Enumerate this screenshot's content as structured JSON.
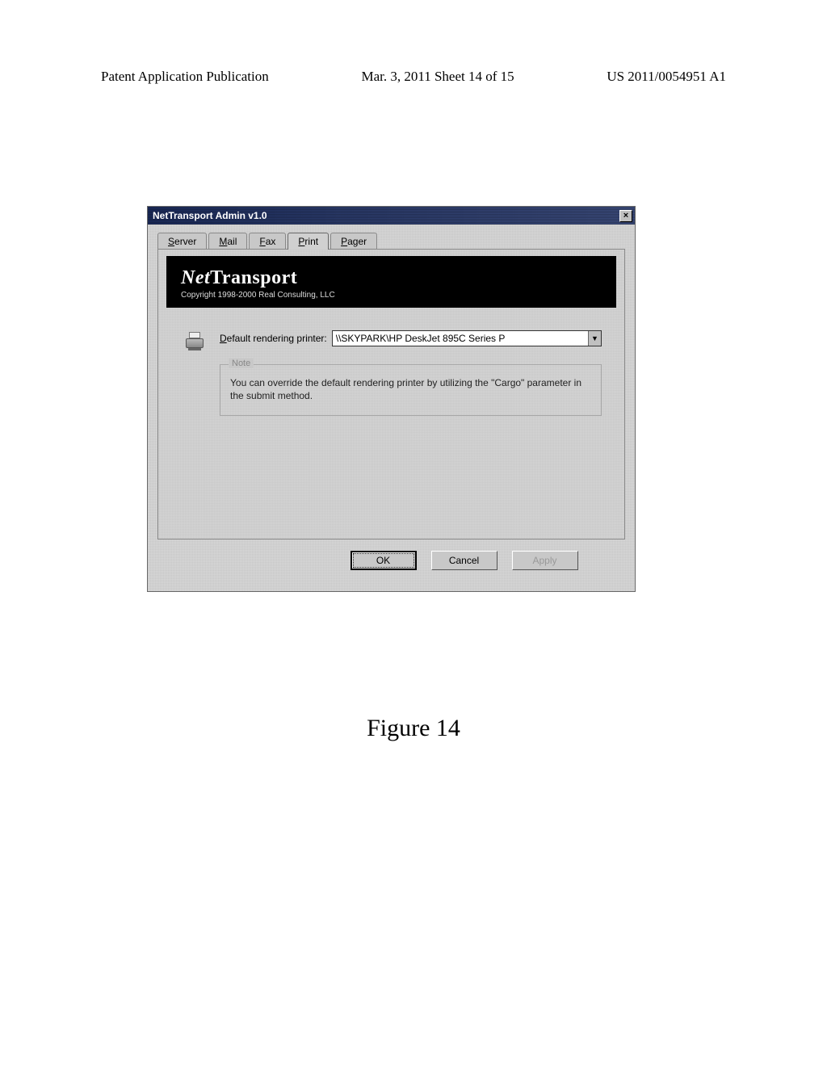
{
  "page_header": {
    "left": "Patent Application Publication",
    "center": "Mar. 3, 2011  Sheet 14 of 15",
    "right": "US 2011/0054951 A1"
  },
  "dialog": {
    "title": "NetTransport Admin v1.0",
    "close_glyph": "×",
    "tabs": [
      {
        "prefix": "S",
        "rest": "erver"
      },
      {
        "prefix": "M",
        "rest": "ail"
      },
      {
        "prefix": "F",
        "rest": "ax"
      },
      {
        "prefix": "P",
        "rest": "rint"
      },
      {
        "prefix": "P",
        "rest": "ager"
      }
    ],
    "active_tab_index": 3,
    "brand": {
      "net": "Net",
      "transport": "Transport",
      "copyright": "Copyright 1998-2000  Real Consulting, LLC"
    },
    "printer_row": {
      "label_prefix": "D",
      "label_rest": "efault rendering printer:",
      "value": "\\\\SKYPARK\\HP DeskJet 895C Series P",
      "drop_glyph": "▼"
    },
    "note": {
      "legend": "Note",
      "text": "You can override the default rendering printer by utilizing the \"Cargo\" parameter in the submit method."
    },
    "buttons": {
      "ok": "OK",
      "cancel": "Cancel",
      "apply": "Apply"
    }
  },
  "figure_caption": "Figure 14"
}
